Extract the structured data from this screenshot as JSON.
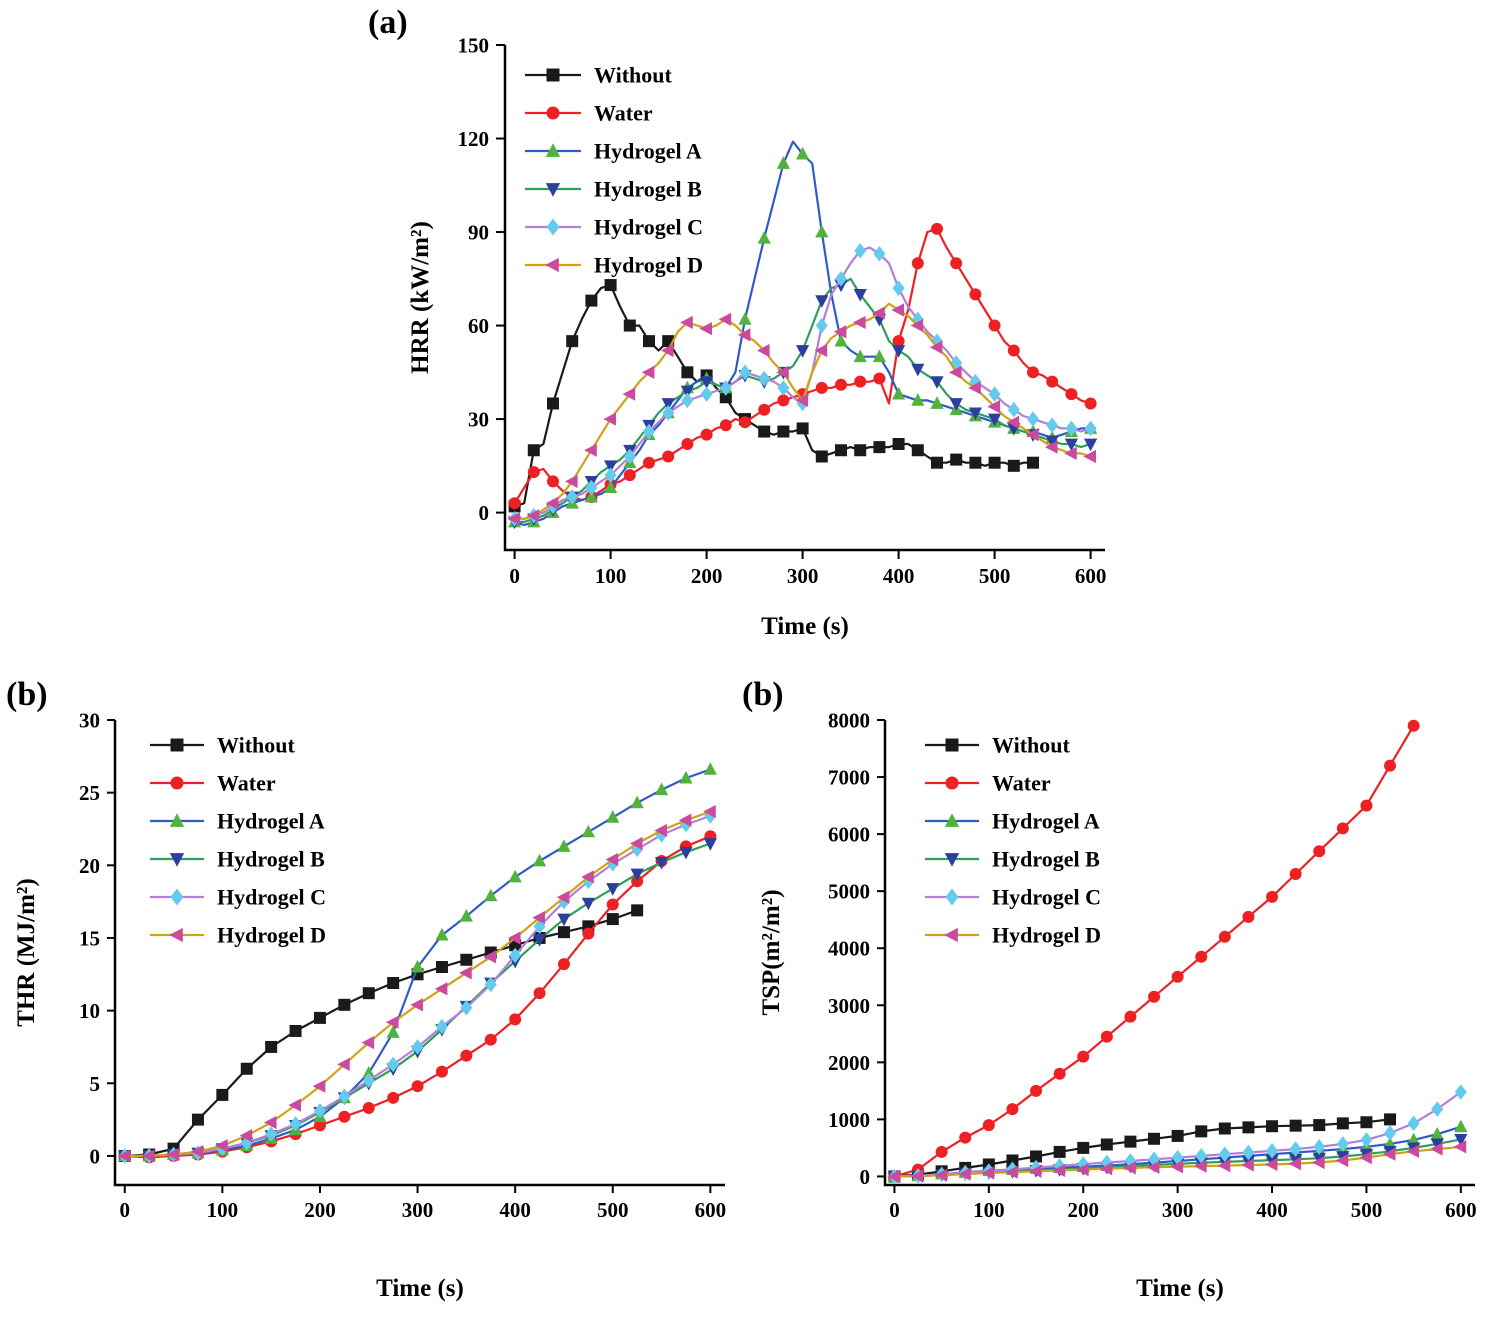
{
  "panels": [
    {
      "label": "(a)"
    },
    {
      "label": "(b)"
    },
    {
      "label": "(b)"
    }
  ],
  "chart_data": [
    {
      "type": "line",
      "title": "",
      "xlabel": "Time (s)",
      "ylabel": "HRR (kW/m²)",
      "xlim": [
        -10,
        615
      ],
      "ylim": [
        -12,
        150
      ],
      "xticks": [
        0,
        100,
        200,
        300,
        400,
        500,
        600
      ],
      "yticks": [
        0,
        30,
        60,
        90,
        120,
        150
      ],
      "grid": false,
      "legend_position": "top-left",
      "x": [
        0,
        10,
        20,
        30,
        40,
        50,
        60,
        70,
        80,
        90,
        100,
        110,
        120,
        130,
        140,
        150,
        160,
        170,
        180,
        190,
        200,
        210,
        220,
        230,
        240,
        250,
        260,
        270,
        280,
        290,
        300,
        310,
        320,
        330,
        340,
        350,
        360,
        370,
        380,
        390,
        400,
        410,
        420,
        430,
        440,
        450,
        460,
        470,
        480,
        490,
        500,
        510,
        520,
        530,
        540,
        550,
        560,
        570,
        580,
        590,
        600
      ],
      "series": [
        {
          "name": "Without",
          "line_color": "#1a1a1a",
          "marker": "square",
          "marker_color": "#1a1a1a",
          "marker_every": 2,
          "y": [
            2,
            3,
            20,
            22,
            35,
            45,
            55,
            62,
            68,
            72,
            73,
            66,
            60,
            60,
            55,
            52,
            55,
            50,
            45,
            42,
            44,
            40,
            37,
            32,
            30,
            28,
            26,
            25,
            26,
            26,
            27,
            20,
            18,
            19,
            20,
            21,
            20,
            21,
            21,
            21,
            22,
            22,
            20,
            18,
            16,
            16,
            17,
            16,
            16,
            15,
            16,
            16,
            15,
            16,
            16
          ]
        },
        {
          "name": "Water",
          "line_color": "#ed2024",
          "marker": "circle",
          "marker_color": "#ed2024",
          "marker_every": 2,
          "y": [
            3,
            8,
            13,
            14,
            10,
            7,
            5,
            4,
            5,
            7,
            9,
            10,
            12,
            14,
            16,
            17,
            18,
            20,
            22,
            24,
            25,
            27,
            28,
            30,
            29,
            31,
            33,
            35,
            36,
            37,
            38,
            39,
            40,
            40,
            41,
            41,
            42,
            42,
            43,
            35,
            55,
            65,
            80,
            90,
            91,
            85,
            80,
            75,
            70,
            65,
            60,
            55,
            52,
            48,
            45,
            44,
            42,
            40,
            38,
            36,
            35
          ]
        },
        {
          "name": "Hydrogel A",
          "line_color": "#2f5ac8",
          "marker": "triangle-up",
          "marker_color": "#51b33c",
          "marker_every": 2,
          "y": [
            -3,
            -4,
            -3,
            -2,
            0,
            2,
            3,
            4,
            5,
            6,
            8,
            12,
            16,
            20,
            25,
            28,
            32,
            36,
            40,
            42,
            43,
            41,
            40,
            45,
            62,
            75,
            88,
            100,
            112,
            119,
            115,
            112,
            90,
            70,
            55,
            52,
            50,
            50,
            50,
            45,
            38,
            37,
            36,
            36,
            35,
            34,
            33,
            32,
            31,
            30,
            29,
            28,
            27,
            26,
            26,
            25,
            24,
            25,
            26,
            27,
            27
          ]
        },
        {
          "name": "Hydrogel B",
          "line_color": "#2ca05a",
          "marker": "triangle-down",
          "marker_color": "#2c3e9e",
          "marker_every": 2,
          "y": [
            -3,
            -3,
            -2,
            -1,
            1,
            3,
            5,
            7,
            10,
            13,
            15,
            17,
            20,
            24,
            28,
            32,
            35,
            37,
            39,
            40,
            42,
            41,
            40,
            42,
            44,
            43,
            42,
            43,
            45,
            47,
            52,
            60,
            68,
            72,
            73,
            75,
            70,
            66,
            62,
            55,
            52,
            50,
            46,
            44,
            42,
            38,
            35,
            33,
            32,
            31,
            30,
            28,
            27,
            26,
            25,
            24,
            23,
            22,
            22,
            21,
            22
          ]
        },
        {
          "name": "Hydrogel C",
          "line_color": "#b27fd9",
          "marker": "diamond",
          "marker_color": "#63cced",
          "marker_every": 2,
          "y": [
            -2,
            -2,
            -1,
            0,
            2,
            4,
            5,
            6,
            8,
            10,
            12,
            15,
            18,
            22,
            26,
            29,
            32,
            34,
            36,
            37,
            38,
            39,
            40,
            42,
            45,
            44,
            43,
            42,
            40,
            37,
            35,
            45,
            60,
            70,
            75,
            80,
            84,
            85,
            83,
            80,
            72,
            66,
            62,
            58,
            55,
            52,
            48,
            45,
            42,
            40,
            38,
            35,
            33,
            31,
            30,
            29,
            28,
            27,
            27,
            26,
            27
          ]
        },
        {
          "name": "Hydrogel D",
          "line_color": "#d2a215",
          "marker": "triangle-left",
          "marker_color": "#cb4a9f",
          "marker_every": 2,
          "y": [
            -2,
            -2,
            -1,
            1,
            3,
            6,
            10,
            15,
            20,
            25,
            30,
            34,
            38,
            42,
            45,
            48,
            52,
            58,
            61,
            60,
            59,
            60,
            62,
            60,
            57,
            55,
            52,
            48,
            45,
            40,
            36,
            45,
            52,
            56,
            58,
            60,
            61,
            62,
            64,
            67,
            65,
            63,
            60,
            57,
            53,
            50,
            45,
            42,
            40,
            37,
            34,
            31,
            29,
            27,
            25,
            23,
            21,
            20,
            19,
            19,
            18
          ]
        }
      ]
    },
    {
      "type": "line",
      "title": "",
      "xlabel": "Time (s)",
      "ylabel": "THR (MJ/m²)",
      "xlim": [
        -10,
        615
      ],
      "ylim": [
        -2,
        30
      ],
      "xticks": [
        0,
        100,
        200,
        300,
        400,
        500,
        600
      ],
      "yticks": [
        0,
        5,
        10,
        15,
        20,
        25,
        30
      ],
      "grid": false,
      "legend_position": "top-left",
      "x": [
        0,
        25,
        50,
        75,
        100,
        125,
        150,
        175,
        200,
        225,
        250,
        275,
        300,
        325,
        350,
        375,
        400,
        425,
        450,
        475,
        500,
        525,
        550,
        575,
        600
      ],
      "series": [
        {
          "name": "Without",
          "line_color": "#1a1a1a",
          "marker": "square",
          "marker_color": "#1a1a1a",
          "marker_every": 1,
          "y": [
            0,
            0.1,
            0.5,
            2.5,
            4.2,
            6.0,
            7.5,
            8.6,
            9.5,
            10.4,
            11.2,
            11.9,
            12.5,
            13.0,
            13.5,
            14.0,
            14.5,
            15.0,
            15.4,
            15.8,
            16.3,
            16.9
          ]
        },
        {
          "name": "Water",
          "line_color": "#ed2024",
          "marker": "circle",
          "marker_color": "#ed2024",
          "marker_every": 1,
          "y": [
            0,
            -0.1,
            0,
            0.1,
            0.3,
            0.6,
            1.0,
            1.5,
            2.1,
            2.7,
            3.3,
            4.0,
            4.8,
            5.8,
            6.9,
            8.0,
            9.4,
            11.2,
            13.2,
            15.3,
            17.3,
            18.9,
            20.3,
            21.3,
            22.0
          ]
        },
        {
          "name": "Hydrogel A",
          "line_color": "#2f5ac8",
          "marker": "triangle-up",
          "marker_color": "#51b33c",
          "marker_every": 1,
          "y": [
            0,
            0,
            0.1,
            0.2,
            0.4,
            0.7,
            1.2,
            1.8,
            2.7,
            4.0,
            5.7,
            8.5,
            13.0,
            15.2,
            16.5,
            17.9,
            19.2,
            20.3,
            21.3,
            22.3,
            23.3,
            24.3,
            25.2,
            26.0,
            26.6
          ]
        },
        {
          "name": "Hydrogel B",
          "line_color": "#2ca05a",
          "marker": "triangle-down",
          "marker_color": "#2c3e9e",
          "marker_every": 1,
          "y": [
            0,
            0,
            0.1,
            0.2,
            0.5,
            0.9,
            1.4,
            2.1,
            3.0,
            4.0,
            5.0,
            6.0,
            7.2,
            8.7,
            10.3,
            11.9,
            13.4,
            14.9,
            16.3,
            17.4,
            18.4,
            19.4,
            20.2,
            20.9,
            21.5
          ]
        },
        {
          "name": "Hydrogel C",
          "line_color": "#b27fd9",
          "marker": "diamond",
          "marker_color": "#63cced",
          "marker_every": 1,
          "y": [
            0,
            0,
            0.1,
            0.2,
            0.5,
            0.9,
            1.5,
            2.2,
            3.1,
            4.1,
            5.2,
            6.3,
            7.5,
            8.9,
            10.2,
            11.8,
            13.8,
            15.8,
            17.5,
            18.9,
            20.1,
            21.1,
            22.1,
            22.8,
            23.4
          ]
        },
        {
          "name": "Hydrogel D",
          "line_color": "#d2a215",
          "marker": "triangle-left",
          "marker_color": "#cb4a9f",
          "marker_every": 1,
          "y": [
            0,
            0,
            0.1,
            0.3,
            0.7,
            1.4,
            2.3,
            3.5,
            4.8,
            6.3,
            7.8,
            9.2,
            10.4,
            11.5,
            12.6,
            13.7,
            15.0,
            16.4,
            17.8,
            19.2,
            20.4,
            21.5,
            22.4,
            23.1,
            23.7
          ]
        }
      ]
    },
    {
      "type": "line",
      "title": "",
      "xlabel": "Time (s)",
      "ylabel": "TSP(m²/m²)",
      "xlim": [
        -10,
        615
      ],
      "ylim": [
        -150,
        8000
      ],
      "xticks": [
        0,
        100,
        200,
        300,
        400,
        500,
        600
      ],
      "yticks": [
        0,
        1000,
        2000,
        3000,
        4000,
        5000,
        6000,
        7000,
        8000
      ],
      "grid": false,
      "legend_position": "top-left",
      "x": [
        0,
        25,
        50,
        75,
        100,
        125,
        150,
        175,
        200,
        225,
        250,
        275,
        300,
        325,
        350,
        375,
        400,
        425,
        450,
        475,
        500,
        525,
        550,
        575,
        600
      ],
      "series": [
        {
          "name": "Without",
          "line_color": "#1a1a1a",
          "marker": "square",
          "marker_color": "#1a1a1a",
          "marker_every": 1,
          "y": [
            0,
            30,
            90,
            150,
            210,
            280,
            350,
            430,
            500,
            560,
            610,
            660,
            710,
            790,
            840,
            860,
            880,
            890,
            900,
            930,
            950,
            1000
          ]
        },
        {
          "name": "Water",
          "line_color": "#ed2024",
          "marker": "circle",
          "marker_color": "#ed2024",
          "marker_every": 1,
          "y": [
            0,
            120,
            430,
            680,
            900,
            1180,
            1500,
            1800,
            2100,
            2450,
            2800,
            3150,
            3500,
            3850,
            4200,
            4550,
            4900,
            5300,
            5700,
            6100,
            6500,
            7200,
            7900
          ]
        },
        {
          "name": "Hydrogel A",
          "line_color": "#2f5ac8",
          "marker": "triangle-up",
          "marker_color": "#51b33c",
          "marker_every": 1,
          "y": [
            0,
            10,
            40,
            70,
            100,
            120,
            140,
            155,
            170,
            190,
            215,
            240,
            270,
            300,
            330,
            360,
            390,
            420,
            450,
            480,
            520,
            570,
            640,
            740,
            870
          ]
        },
        {
          "name": "Hydrogel B",
          "line_color": "#2ca05a",
          "marker": "triangle-down",
          "marker_color": "#2c3e9e",
          "marker_every": 1,
          "y": [
            0,
            5,
            25,
            45,
            65,
            85,
            105,
            120,
            140,
            160,
            180,
            200,
            220,
            240,
            255,
            270,
            285,
            300,
            320,
            350,
            390,
            440,
            500,
            570,
            650
          ]
        },
        {
          "name": "Hydrogel C",
          "line_color": "#b27fd9",
          "marker": "diamond",
          "marker_color": "#63cced",
          "marker_every": 1,
          "y": [
            0,
            10,
            35,
            65,
            95,
            125,
            155,
            185,
            215,
            245,
            270,
            300,
            330,
            360,
            390,
            420,
            450,
            480,
            520,
            570,
            640,
            760,
            930,
            1180,
            1480
          ]
        },
        {
          "name": "Hydrogel D",
          "line_color": "#d2a215",
          "marker": "triangle-left",
          "marker_color": "#cb4a9f",
          "marker_every": 1,
          "y": [
            0,
            5,
            20,
            40,
            60,
            75,
            90,
            105,
            120,
            135,
            150,
            160,
            170,
            180,
            190,
            200,
            210,
            225,
            245,
            280,
            330,
            390,
            440,
            480,
            520
          ]
        }
      ]
    }
  ]
}
